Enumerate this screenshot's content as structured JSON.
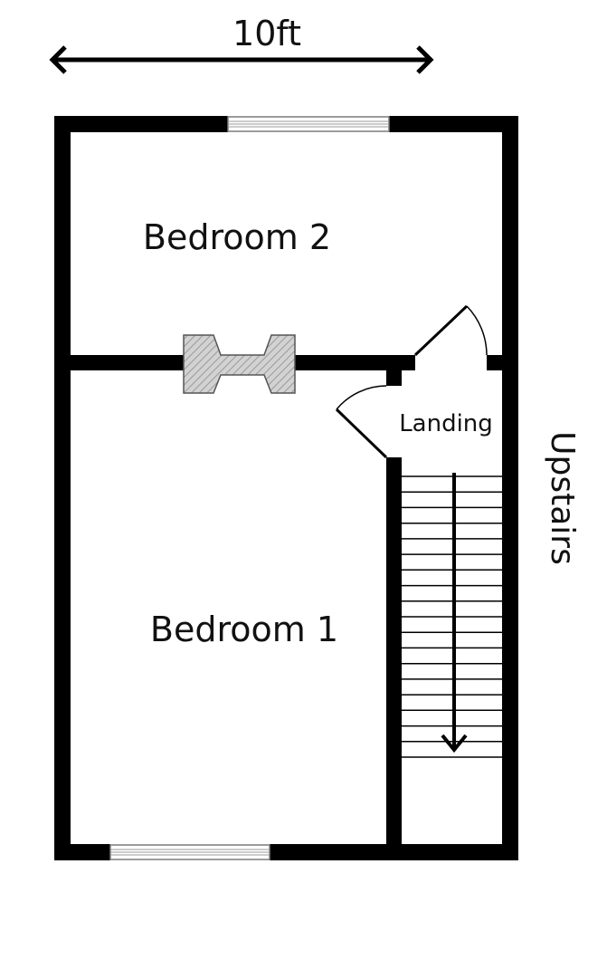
{
  "dimension": {
    "label": "10ft"
  },
  "rooms": {
    "bedroom2": "Bedroom 2",
    "bedroom1": "Bedroom 1",
    "landing": "Landing"
  },
  "stairs": {
    "label": "Upstairs",
    "direction": "down-arrow",
    "tread_count": 18
  },
  "colors": {
    "wall": "#000000",
    "window_frame": "#7a7a7a",
    "chimney_fill": "#d2d2d2",
    "chimney_hatch": "#8a8a8a",
    "background": "#ffffff"
  }
}
